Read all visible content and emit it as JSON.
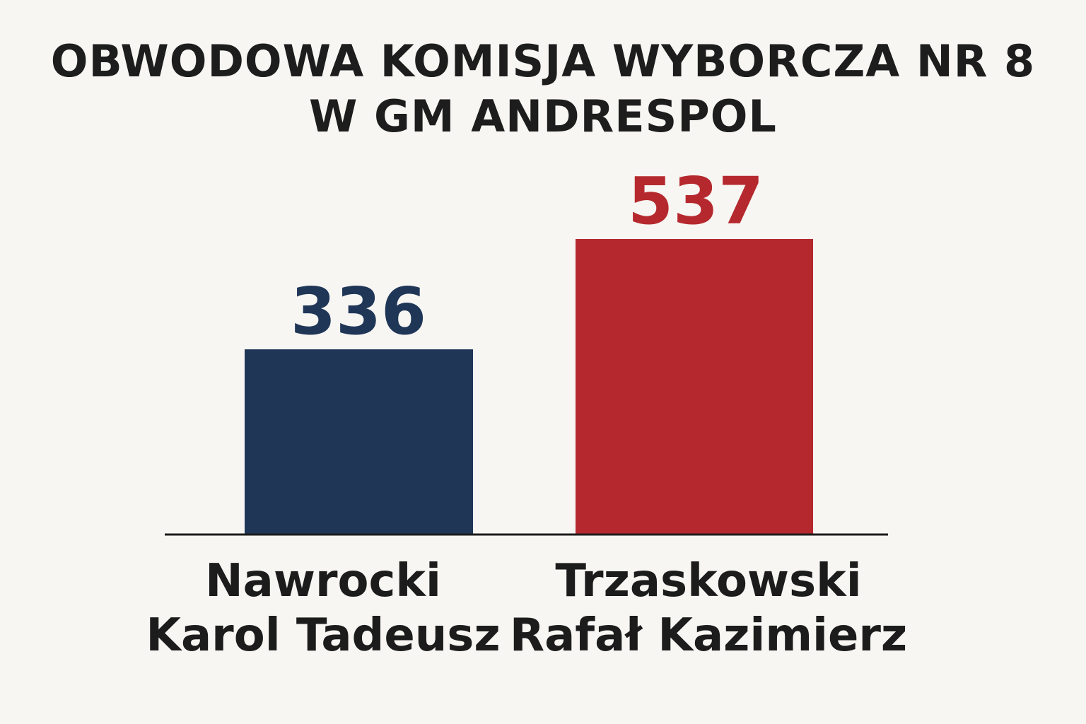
{
  "chart_data": {
    "type": "bar",
    "title": [
      "OBWODOWA KOMISJA WYBORCZA NR 8",
      "W GM ANDRESPOL"
    ],
    "categories": [
      [
        "Nawrocki",
        "Karol Tadeusz"
      ],
      [
        "Trzaskowski",
        "Rafał Kazimierz"
      ]
    ],
    "values": [
      336,
      537
    ],
    "colors": [
      "#1f3657",
      "#b5292e"
    ],
    "ylim": [
      0,
      537
    ],
    "grid": false,
    "legend": "none"
  }
}
